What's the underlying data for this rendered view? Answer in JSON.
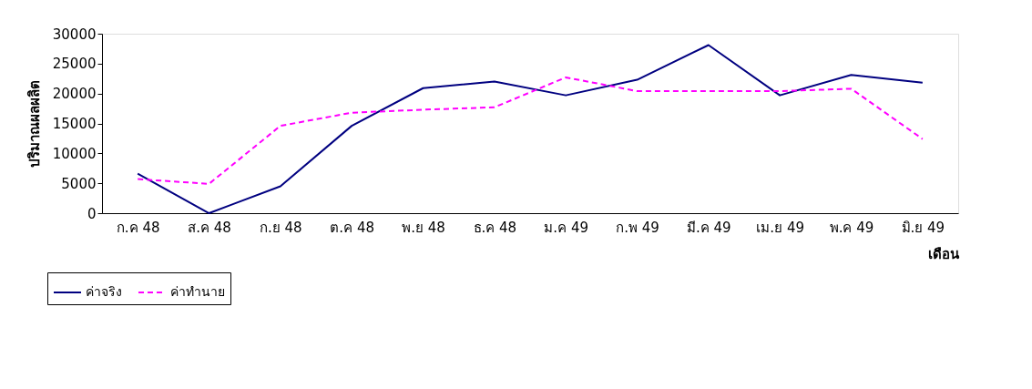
{
  "chart_data": {
    "type": "line",
    "xlabel": "เดือน",
    "ylabel": "ปริมาณผลผลิต",
    "categories": [
      "ก.ค 48",
      "ส.ค 48",
      "ก.ย 48",
      "ต.ค 48",
      "พ.ย 48",
      "ธ.ค 48",
      "ม.ค 49",
      "ก.พ 49",
      "มี.ค 49",
      "เม.ย 49",
      "พ.ค 49",
      "มิ.ย 49"
    ],
    "series": [
      {
        "name": "ค่าจริง",
        "color": "#000080",
        "line_style": "solid",
        "values": [
          6600,
          0,
          4500,
          14600,
          20900,
          22000,
          19700,
          22300,
          28100,
          19700,
          23100,
          21800
        ]
      },
      {
        "name": "ค่าทำนาย",
        "color": "#ff00ff",
        "line_style": "dashed",
        "values": [
          5700,
          4900,
          14600,
          16800,
          17300,
          17700,
          22700,
          20400,
          20400,
          20400,
          20800,
          12400
        ]
      }
    ],
    "ylim": [
      0,
      30000
    ],
    "yticks": [
      0,
      5000,
      10000,
      15000,
      20000,
      25000,
      30000
    ],
    "grid": false,
    "legend": "bottom left",
    "marker": "none"
  }
}
